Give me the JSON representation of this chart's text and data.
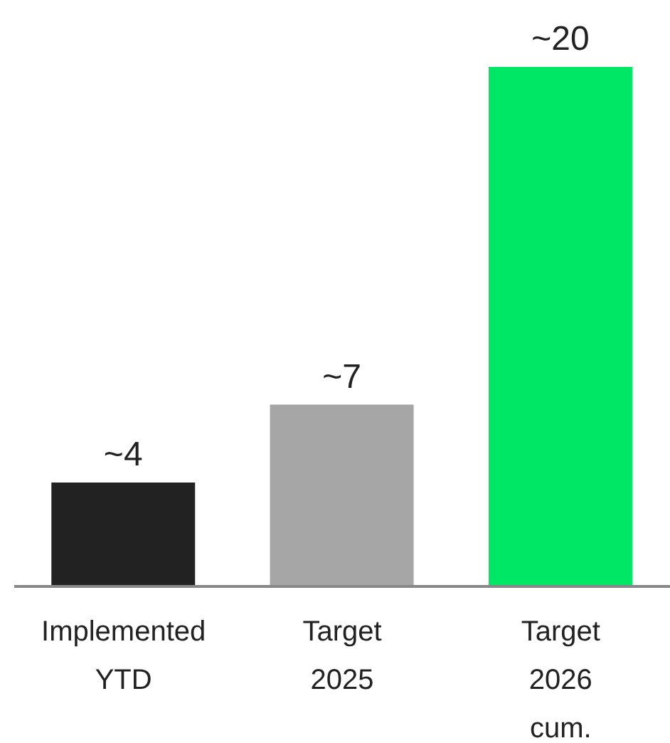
{
  "chart_data": {
    "type": "bar",
    "categories": [
      "Implemented YTD",
      "Target 2025",
      "Target 2026 cum."
    ],
    "values": [
      4,
      7,
      20
    ],
    "colors": [
      "#222222",
      "#a6a6a6",
      "#00e765"
    ],
    "value_labels": [
      "~4",
      "~7",
      "~20"
    ],
    "ylim": [
      0,
      20
    ],
    "tick_labels": "x"
  }
}
